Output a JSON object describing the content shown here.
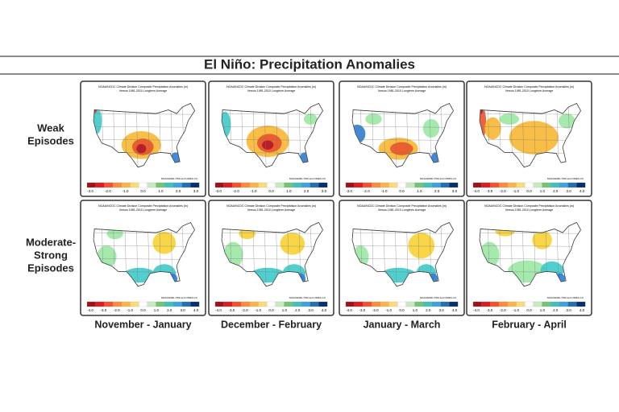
{
  "title": "El Niño: Precipitation Anomalies",
  "rows": [
    {
      "label_lines": [
        "Weak",
        "Episodes"
      ]
    },
    {
      "label_lines": [
        "Moderate-",
        "Strong",
        "Episodes"
      ]
    }
  ],
  "columns": [
    "November - January",
    "December - February",
    "January - March",
    "February - April"
  ],
  "panels": [
    {
      "header": "NOAA/NCDC Climate Division Composite Precipitation Anomalies (in)",
      "subheader": "Versus 1981-2010 Longterm Average",
      "credit": "NOAA/ESRL PSD and CIRES-CU",
      "ticks": [
        "-3.0",
        "-2.0",
        "-1.0",
        "0.0",
        "1.0",
        "2.0",
        "3.0"
      ]
    },
    {
      "header": "NOAA/NCDC Climate Division Composite Precipitation Anomalies (in)",
      "subheader": "Versus 1981-2010 Longterm Average",
      "credit": "NOAA/ESRL PSD and CIRES-CU",
      "ticks": [
        "-3.0",
        "-2.0",
        "-1.0",
        "0.0",
        "1.0",
        "2.0",
        "3.0"
      ]
    },
    {
      "header": "NOAA/NCDC Climate Division Composite Precipitation Anomalies (in)",
      "subheader": "Versus 1981-2010 Longterm Average",
      "credit": "NOAA/ESRL PSD and CIRES-CU",
      "ticks": [
        "-3.0",
        "-2.0",
        "-1.0",
        "0.0",
        "1.0",
        "2.0",
        "3.0"
      ]
    },
    {
      "header": "NOAA/NCDC Climate Division Composite Precipitation Anomalies (in)",
      "subheader": "Versus 1981-2010 Longterm Average",
      "credit": "NOAA/ESRL PSD and CIRES-CU",
      "ticks": [
        "-4.0",
        "-3.0",
        "-2.0",
        "-1.0",
        "0.0",
        "1.0",
        "2.0",
        "3.0",
        "4.0"
      ]
    },
    {
      "header": "NOAA/NCDC Climate Division Composite Precipitation Anomalies (in)",
      "subheader": "Versus 1981-2010 Longterm Average",
      "credit": "NOAA/ESRL PSD and CIRES-CU",
      "ticks": [
        "-4.0",
        "-3.0",
        "-2.0",
        "-1.0",
        "0.0",
        "1.0",
        "2.0",
        "3.0",
        "4.0"
      ]
    },
    {
      "header": "NOAA/NCDC Climate Division Composite Precipitation Anomalies (in)",
      "subheader": "Versus 1981-2010 Longterm Average",
      "credit": "NOAA/ESRL PSD and CIRES-CU",
      "ticks": [
        "-4.0",
        "-3.0",
        "-2.0",
        "-1.0",
        "0.0",
        "1.0",
        "2.0",
        "3.0",
        "4.0"
      ]
    },
    {
      "header": "NOAA/NCDC Climate Division Composite Precipitation Anomalies (in)",
      "subheader": "Versus 1981-2010 Longterm Average",
      "credit": "NOAA/ESRL PSD and CIRES-CU",
      "ticks": [
        "-4.0",
        "-3.0",
        "-2.0",
        "-1.0",
        "0.0",
        "1.0",
        "2.0",
        "3.0",
        "4.0"
      ]
    },
    {
      "header": "NOAA/NCDC Climate Division Composite Precipitation Anomalies (in)",
      "subheader": "Versus 1981-2010 Longterm Average",
      "credit": "NOAA/ESRL PSD and CIRES-CU",
      "ticks": [
        "-4.0",
        "-3.0",
        "-2.0",
        "-1.0",
        "0.0",
        "1.0",
        "2.0",
        "3.0",
        "4.0"
      ]
    }
  ]
}
